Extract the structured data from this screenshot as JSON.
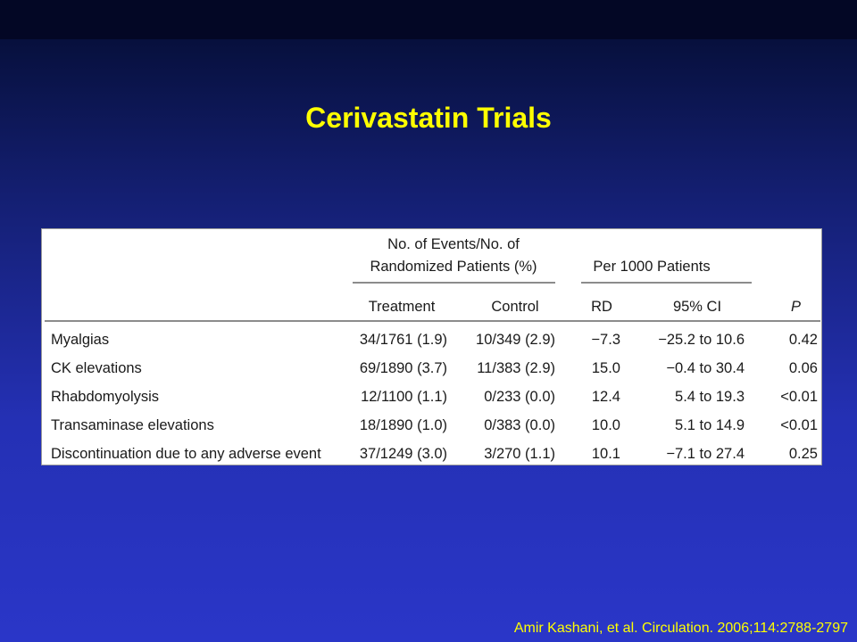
{
  "slide": {
    "title": "Cerivastatin Trials",
    "citation": "Amir Kashani, et al. Circulation. 2006;114:2788-2797"
  },
  "table": {
    "group_headers": {
      "events_line1": "No. of Events/No. of",
      "events_line2": "Randomized Patients (%)",
      "per_1000": "Per 1000 Patients"
    },
    "columns": {
      "treatment": "Treatment",
      "control": "Control",
      "rd": "RD",
      "ci": "95% CI",
      "p": "P"
    },
    "rows": [
      {
        "label": "Myalgias",
        "treatment": "34/1761 (1.9)",
        "control": "10/349 (2.9)",
        "rd": "−7.3",
        "ci": "−25.2 to 10.6",
        "p": "0.42"
      },
      {
        "label": "CK elevations",
        "treatment": "69/1890 (3.7)",
        "control": "11/383 (2.9)",
        "rd": "15.0",
        "ci": "−0.4 to 30.4",
        "p": "0.06"
      },
      {
        "label": "Rhabdomyolysis",
        "treatment": "12/1100 (1.1)",
        "control": "0/233 (0.0)",
        "rd": "12.4",
        "ci": "5.4 to 19.3",
        "p": "<0.01"
      },
      {
        "label": "Transaminase elevations",
        "treatment": "18/1890 (1.0)",
        "control": "0/383 (0.0)",
        "rd": "10.0",
        "ci": "5.1 to 14.9",
        "p": "<0.01"
      },
      {
        "label": "Discontinuation due to any adverse event",
        "treatment": "37/1249 (3.0)",
        "control": "3/270 (1.1)",
        "rd": "10.1",
        "ci": "−7.1 to 27.4",
        "p": "0.25"
      }
    ]
  }
}
